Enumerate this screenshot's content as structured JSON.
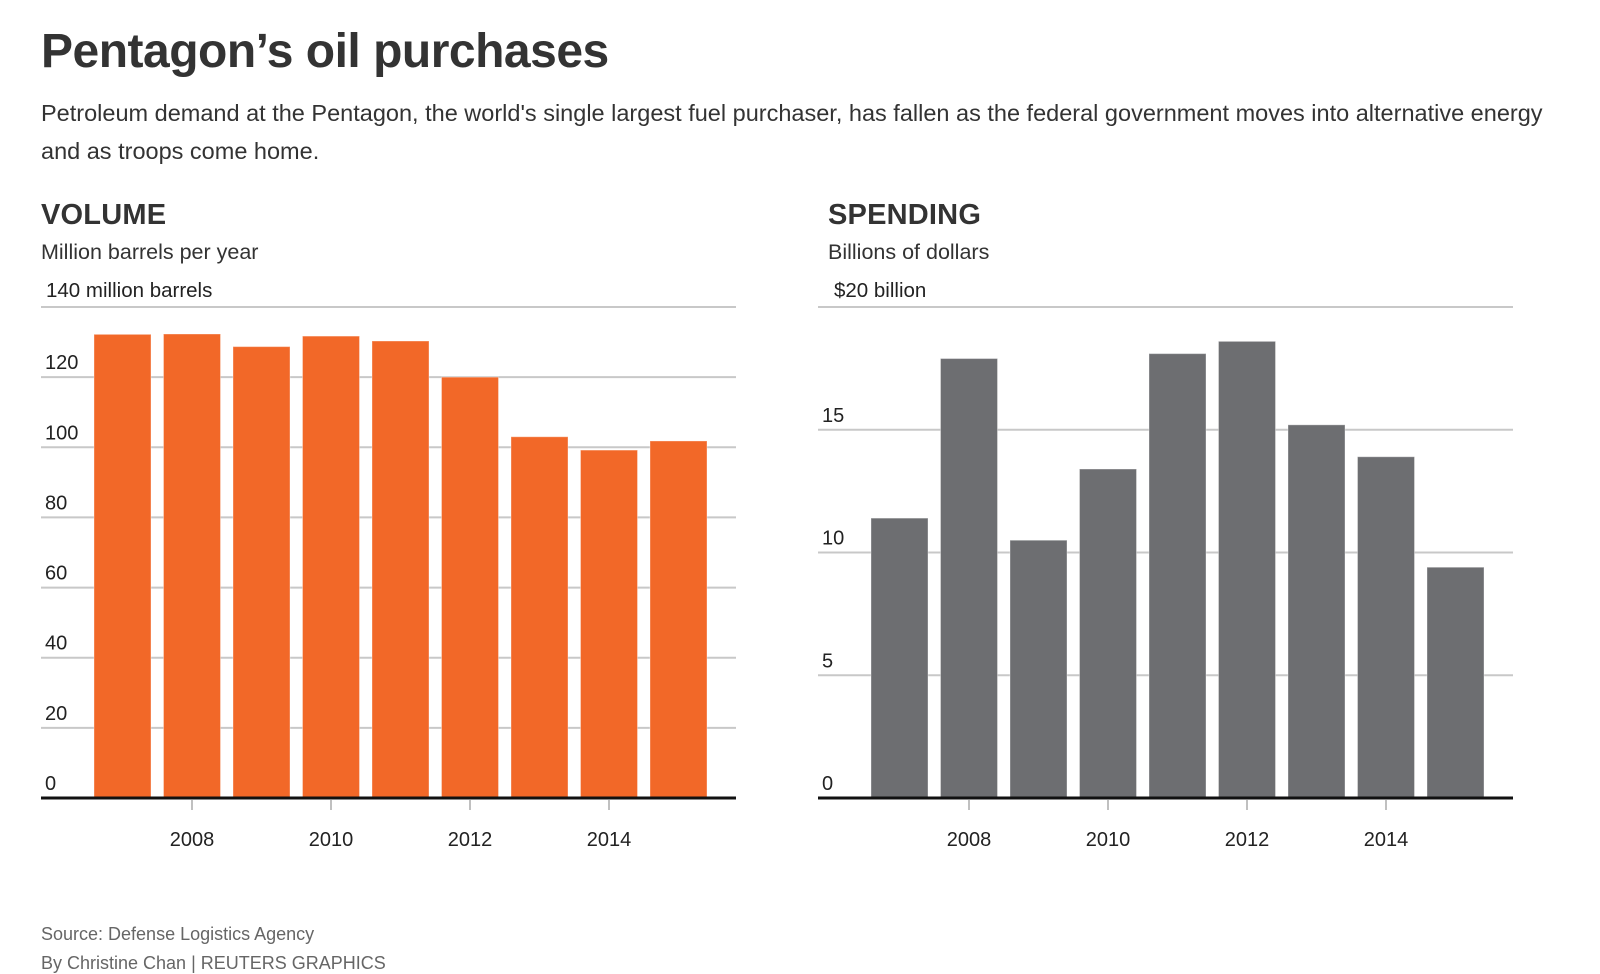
{
  "header": {
    "title": "Pentagon’s oil purchases",
    "subtitle": "Petroleum demand at the Pentagon, the world's single largest fuel purchaser, has fallen as the federal government moves into alternative energy and as troops come home."
  },
  "footer": {
    "source": "Source: Defense Logistics Agency",
    "credit": "By Christine Chan | REUTERS GRAPHICS"
  },
  "colors": {
    "volume_bar": "#f26828",
    "spending_bar": "#6d6e71",
    "gridline": "#c8c8c8",
    "baseline": "#111111",
    "text": "#333333"
  },
  "chart_data": [
    {
      "type": "bar",
      "title": "VOLUME",
      "subtitle": "Million barrels per year",
      "top_label": "140 million barrels",
      "categories": [
        "2007",
        "2008",
        "2009",
        "2010",
        "2011",
        "2012",
        "2013",
        "2014",
        "2015"
      ],
      "values": [
        132.2,
        132.3,
        128.7,
        131.7,
        130.3,
        120.0,
        103.0,
        99.2,
        101.8
      ],
      "ylim": [
        0,
        140
      ],
      "yticks": [
        0,
        20,
        40,
        60,
        80,
        100,
        120,
        140
      ],
      "ytick_labels": [
        "0",
        "20",
        "40",
        "60",
        "80",
        "100",
        "120",
        ""
      ],
      "xtick_labels": [
        "2008",
        "2010",
        "2012",
        "2014"
      ],
      "xlabel": "",
      "ylabel": "Million barrels per year",
      "grid": true,
      "color": "#f26828"
    },
    {
      "type": "bar",
      "title": "SPENDING",
      "subtitle": "Billions of dollars",
      "top_label": "$20 billion",
      "categories": [
        "2007",
        "2008",
        "2009",
        "2010",
        "2011",
        "2012",
        "2013",
        "2014",
        "2015"
      ],
      "values": [
        11.4,
        17.9,
        10.5,
        13.4,
        18.1,
        18.6,
        15.2,
        13.9,
        9.4
      ],
      "ylim": [
        0,
        20
      ],
      "yticks": [
        0,
        5,
        10,
        15,
        20
      ],
      "ytick_labels": [
        "0",
        "5",
        "10",
        "15",
        ""
      ],
      "xtick_labels": [
        "2008",
        "2010",
        "2012",
        "2014"
      ],
      "xlabel": "",
      "ylabel": "Billions of dollars",
      "grid": true,
      "color": "#6d6e71"
    }
  ]
}
